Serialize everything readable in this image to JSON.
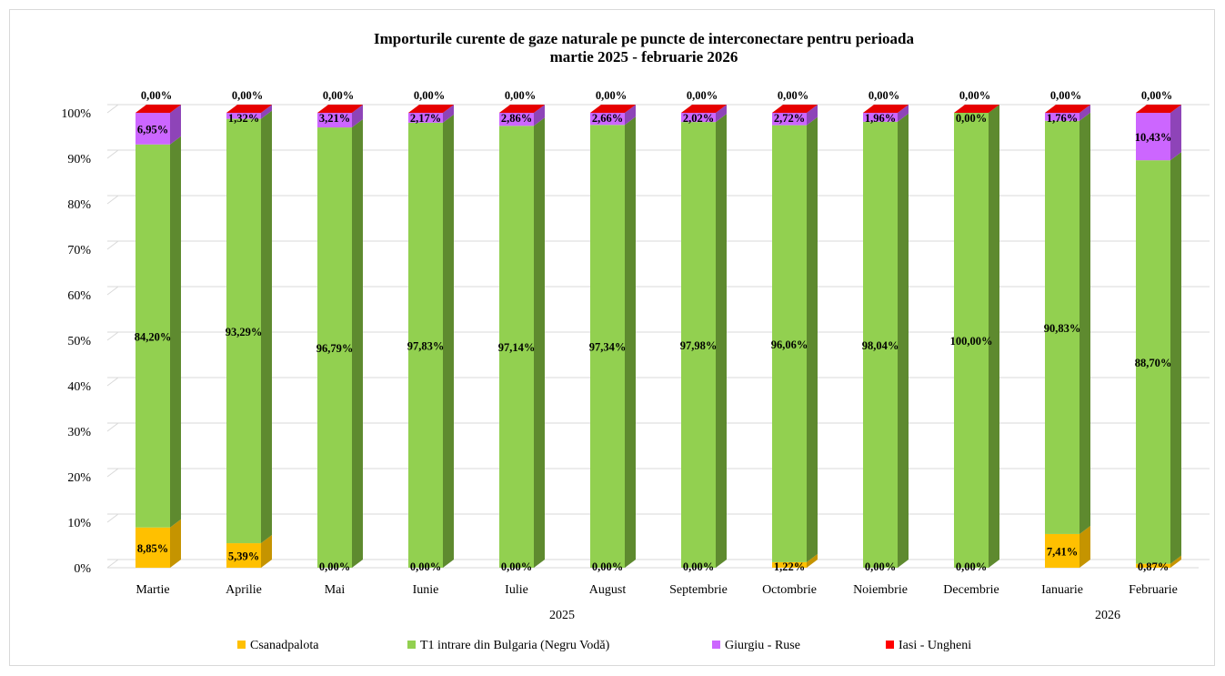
{
  "chart_data": {
    "type": "bar",
    "stacked": true,
    "percent": true,
    "title": "Importurile curente de gaze naturale pe puncte de interconectare pentru perioada",
    "subtitle": "martie 2025 - februarie 2026",
    "categories": [
      "Martie",
      "Aprilie",
      "Mai",
      "Iunie",
      "Iulie",
      "August",
      "Septembrie",
      "Octombrie",
      "Noiembrie",
      "Decembrie",
      "Ianuarie",
      "Februarie"
    ],
    "year_groups": [
      {
        "label": "2025",
        "from": 0,
        "to": 9
      },
      {
        "label": "2026",
        "from": 10,
        "to": 11
      }
    ],
    "ylim": [
      0,
      100
    ],
    "yticks": [
      "0%",
      "10%",
      "20%",
      "30%",
      "40%",
      "50%",
      "60%",
      "70%",
      "80%",
      "90%",
      "100%"
    ],
    "grid": true,
    "legend_position": "bottom",
    "series": [
      {
        "name": "Csanadpalota",
        "color": "#FFC000",
        "side": "#C59400",
        "top": "#E6AE00",
        "values": [
          8.85,
          5.39,
          0.0,
          0.0,
          0.0,
          0.0,
          0.0,
          1.22,
          0.0,
          0.0,
          7.41,
          0.87
        ],
        "labels": [
          "8,85%",
          "5,39%",
          "0,00%",
          "0,00%",
          "0,00%",
          "0,00%",
          "0,00%",
          "1,22%",
          "0,00%",
          "0,00%",
          "7,41%",
          "0,87%"
        ]
      },
      {
        "name": "T1 intrare din Bulgaria (Negru Vodă)",
        "color": "#92D050",
        "side": "#5E8A2F",
        "top": "#7FB845",
        "values": [
          84.2,
          93.29,
          96.79,
          97.83,
          97.14,
          97.34,
          97.98,
          96.06,
          98.04,
          100.0,
          90.83,
          88.7
        ],
        "labels": [
          "84,20%",
          "93,29%",
          "96,79%",
          "97,83%",
          "97,14%",
          "97,34%",
          "97,98%",
          "96,06%",
          "98,04%",
          "100,00%",
          "90,83%",
          "88,70%"
        ]
      },
      {
        "name": "Giurgiu - Ruse",
        "color": "#CC66FF",
        "side": "#8E44B8",
        "top": "#B455E6",
        "values": [
          6.95,
          1.32,
          3.21,
          2.17,
          2.86,
          2.66,
          2.02,
          2.72,
          1.96,
          0.0,
          1.76,
          10.43
        ],
        "labels": [
          "6,95%",
          "1,32%",
          "3,21%",
          "2,17%",
          "2,86%",
          "2,66%",
          "2,02%",
          "2,72%",
          "1,96%",
          "0,00%",
          "1,76%",
          "10,43%"
        ]
      },
      {
        "name": "Iasi - Ungheni",
        "color": "#FF0000",
        "side": "#B30000",
        "top": "#E60000",
        "values": [
          0.0,
          0.0,
          0.0,
          0.0,
          0.0,
          0.0,
          0.0,
          0.0,
          0.0,
          0.0,
          0.0,
          0.0
        ],
        "labels": [
          "0,00%",
          "0,00%",
          "0,00%",
          "0,00%",
          "0,00%",
          "0,00%",
          "0,00%",
          "0,00%",
          "0,00%",
          "0,00%",
          "0,00%",
          "0,00%"
        ]
      }
    ]
  }
}
